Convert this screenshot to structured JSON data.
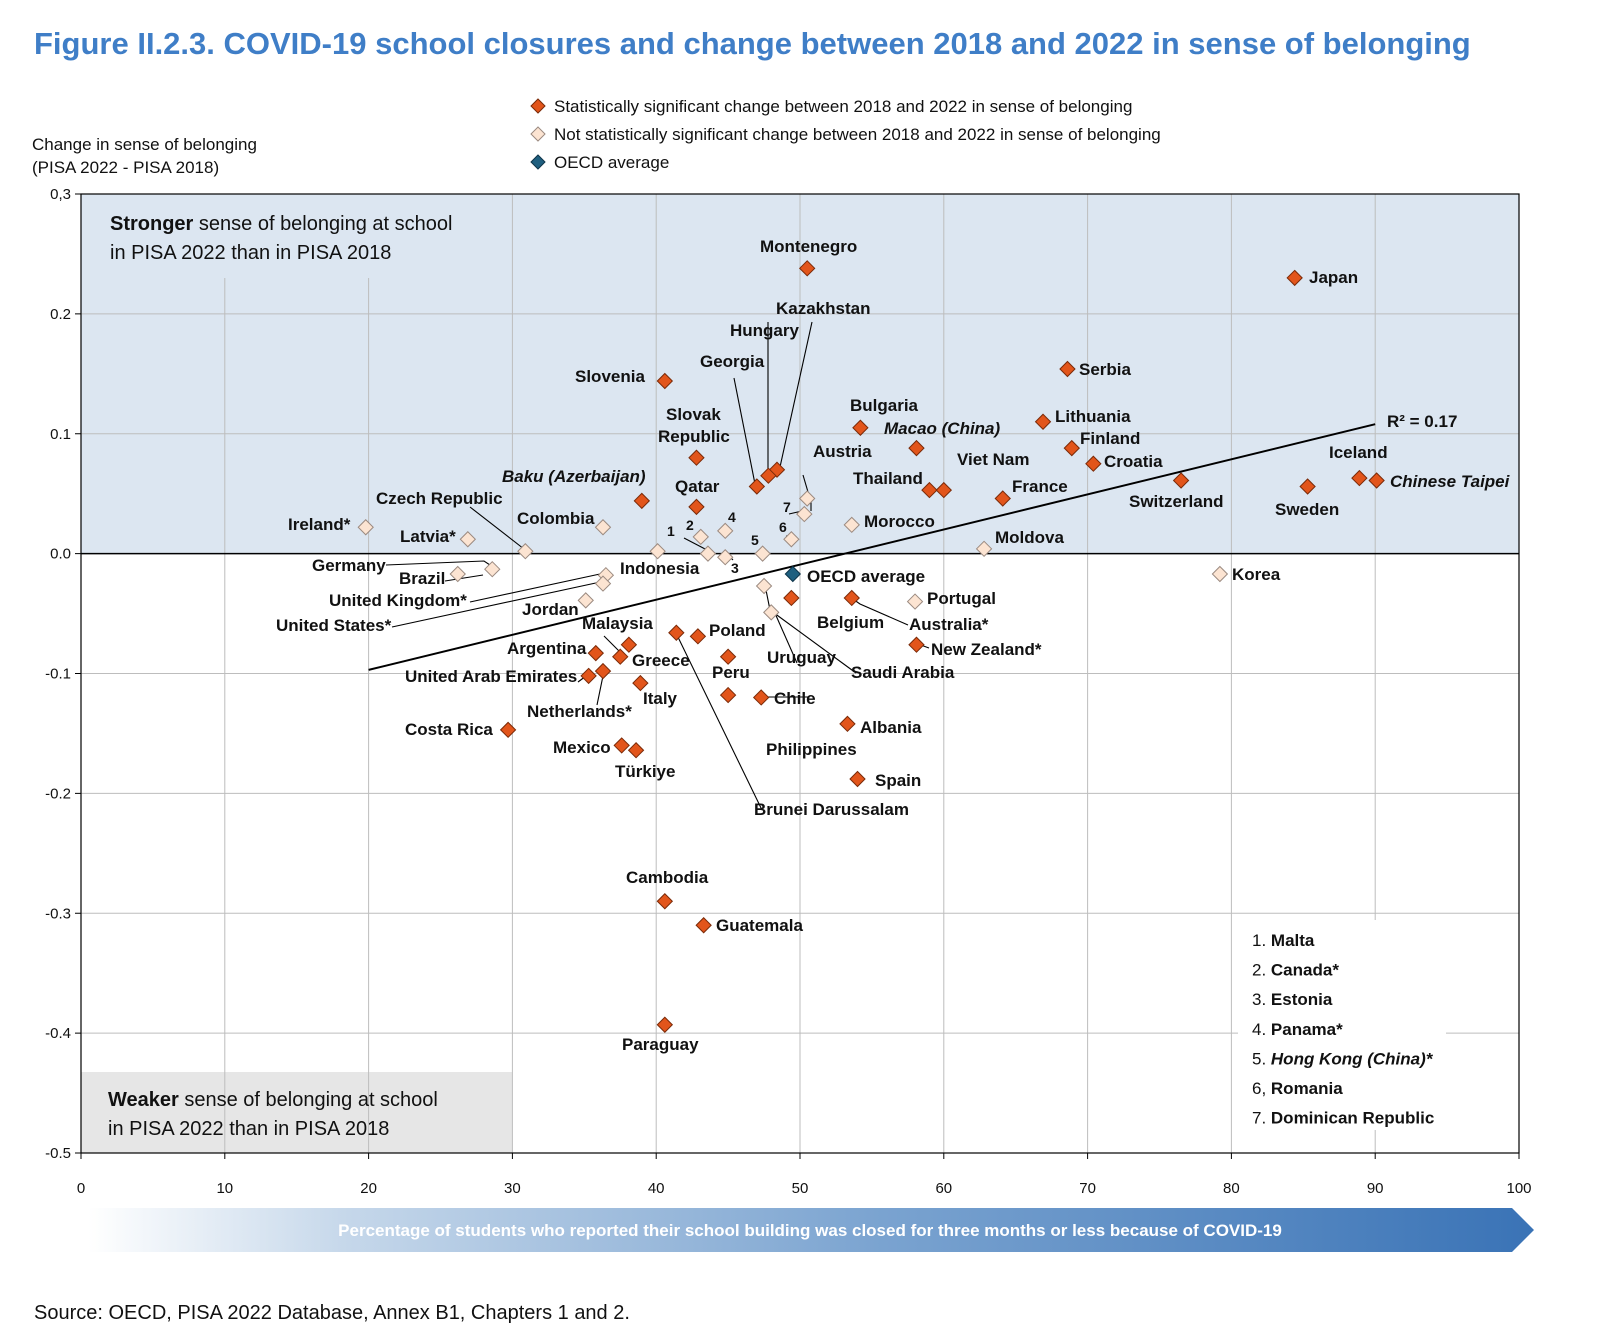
{
  "title": "Figure II.2.3. COVID-19 school closures and change between 2018 and 2022 in sense of belonging",
  "source": "Source: OECD, PISA 2022 Database, Annex B1, Chapters 1 and 2.",
  "colors": {
    "significant": "#e2551b",
    "not_significant": "#fce4d2",
    "oecd": "#1f5f7f",
    "positive_band": "#dce6f1",
    "negative_box": "#e6e6e6",
    "title": "#3f7ec7"
  },
  "legend": {
    "significant": "Statistically significant change between 2018 and 2022 in sense of belonging",
    "not_significant": "Not statistically significant change between 2018 and 2022 in sense of belonging",
    "oecd": "OECD average"
  },
  "region_labels": {
    "top_bold": "Stronger",
    "top_rest": " sense of belonging at school",
    "top_line2": "in PISA 2022 than in PISA 2018",
    "bottom_bold": "Weaker",
    "bottom_rest": " sense of belonging at school",
    "bottom_line2": "in PISA 2022 than in PISA 2018"
  },
  "notes": [
    {
      "num": "1.",
      "text": "Malta",
      "italic": false
    },
    {
      "num": "2.",
      "text": "Canada*",
      "italic": false
    },
    {
      "num": "3.",
      "text": "Estonia",
      "italic": false
    },
    {
      "num": "4.",
      "text": "Panama*",
      "italic": false
    },
    {
      "num": "5.",
      "text": "Hong Kong (China)*",
      "italic": true
    },
    {
      "num": "6,",
      "text": "Romania",
      "italic": false
    },
    {
      "num": "7.",
      "text": "Dominican Republic",
      "italic": false
    }
  ],
  "chart_data": {
    "type": "scatter",
    "ylabel_line1": "Change in sense of belonging",
    "ylabel_line2": "(PISA 2022 - PISA 2018)",
    "xlabel": "Percentage of students who reported their school building was closed for three months or less because of COVID-19",
    "xlim": [
      0,
      100
    ],
    "ylim": [
      -0.5,
      0.3
    ],
    "xticks": [
      "0",
      "10",
      "20",
      "30",
      "40",
      "50",
      "60",
      "70",
      "80",
      "90",
      "100"
    ],
    "yticks": [
      "0,3",
      "0.2",
      "0.1",
      "0.0",
      "-0.1",
      "-0.2",
      "-0.3",
      "-0.4",
      "-0.5"
    ],
    "grid": true,
    "trendline": {
      "x": [
        20,
        90
      ],
      "y": [
        -0.097,
        0.108
      ],
      "label": "R² = 0.17"
    },
    "points": [
      {
        "name": "Montenegro",
        "x": 50.5,
        "y": 0.238,
        "sig": true
      },
      {
        "name": "Japan",
        "x": 84.4,
        "y": 0.23,
        "sig": true
      },
      {
        "name": "Serbia",
        "x": 68.6,
        "y": 0.154,
        "sig": true
      },
      {
        "name": "Slovenia",
        "x": 40.6,
        "y": 0.144,
        "sig": true
      },
      {
        "name": "Lithuania",
        "x": 66.9,
        "y": 0.11,
        "sig": true
      },
      {
        "name": "Bulgaria",
        "x": 54.2,
        "y": 0.105,
        "sig": true
      },
      {
        "name": "Macao (China)",
        "x": 58.1,
        "y": 0.088,
        "sig": true,
        "italic": true
      },
      {
        "name": "Finland",
        "x": 68.9,
        "y": 0.088,
        "sig": true
      },
      {
        "name": "Slovak Republic",
        "x": 42.8,
        "y": 0.08,
        "sig": true
      },
      {
        "name": "Croatia",
        "x": 70.4,
        "y": 0.075,
        "sig": true
      },
      {
        "name": "Kazakhstan",
        "x": 48.4,
        "y": 0.07,
        "sig": true
      },
      {
        "name": "Hungary",
        "x": 47.8,
        "y": 0.065,
        "sig": true
      },
      {
        "name": "Iceland",
        "x": 88.9,
        "y": 0.063,
        "sig": true
      },
      {
        "name": "Chinese Taipei",
        "x": 90.1,
        "y": 0.061,
        "sig": true,
        "italic": true
      },
      {
        "name": "Switzerland",
        "x": 76.5,
        "y": 0.061,
        "sig": true
      },
      {
        "name": "Georgia",
        "x": 47.0,
        "y": 0.056,
        "sig": true
      },
      {
        "name": "Sweden",
        "x": 85.3,
        "y": 0.056,
        "sig": true
      },
      {
        "name": "Thailand",
        "x": 59.0,
        "y": 0.053,
        "sig": true
      },
      {
        "name": "Viet Nam",
        "x": 60.0,
        "y": 0.053,
        "sig": true
      },
      {
        "name": "France",
        "x": 64.1,
        "y": 0.046,
        "sig": true
      },
      {
        "name": "Baku (Azerbaijan)",
        "x": 39.0,
        "y": 0.044,
        "sig": true,
        "italic": true
      },
      {
        "name": "Qatar",
        "x": 42.8,
        "y": 0.039,
        "sig": true
      },
      {
        "name": "Austria",
        "x": 50.5,
        "y": 0.046,
        "sig": false
      },
      {
        "name": "Dominican Republic",
        "x": 50.3,
        "y": 0.033,
        "sig": false
      },
      {
        "name": "Morocco",
        "x": 53.6,
        "y": 0.024,
        "sig": false
      },
      {
        "name": "Ireland*",
        "x": 19.8,
        "y": 0.022,
        "sig": false
      },
      {
        "name": "Colombia",
        "x": 36.3,
        "y": 0.022,
        "sig": false
      },
      {
        "name": "Panama*",
        "x": 44.8,
        "y": 0.019,
        "sig": false
      },
      {
        "name": "Canada*",
        "x": 43.1,
        "y": 0.014,
        "sig": false
      },
      {
        "name": "Latvia*",
        "x": 26.9,
        "y": 0.012,
        "sig": false
      },
      {
        "name": "Romania",
        "x": 49.4,
        "y": 0.012,
        "sig": false
      },
      {
        "name": "Moldova",
        "x": 62.8,
        "y": 0.004,
        "sig": false
      },
      {
        "name": "Czech Republic",
        "x": 30.9,
        "y": 0.002,
        "sig": false
      },
      {
        "name": "Indonesia",
        "x": 40.1,
        "y": 0.002,
        "sig": false
      },
      {
        "name": "Malta",
        "x": 43.6,
        "y": 0.0,
        "sig": false
      },
      {
        "name": "Hong Kong (China)*",
        "x": 47.4,
        "y": 0.0,
        "sig": false
      },
      {
        "name": "Estonia",
        "x": 44.8,
        "y": -0.003,
        "sig": false
      },
      {
        "name": "Germany",
        "x": 28.6,
        "y": -0.013,
        "sig": false
      },
      {
        "name": "Brazil",
        "x": 26.2,
        "y": -0.017,
        "sig": false
      },
      {
        "name": "United Kingdom*",
        "x": 36.5,
        "y": -0.018,
        "sig": false
      },
      {
        "name": "Korea",
        "x": 79.2,
        "y": -0.017,
        "sig": false
      },
      {
        "name": "United States*",
        "x": 36.3,
        "y": -0.025,
        "sig": false
      },
      {
        "name": "Saudi Arabia",
        "x": 47.5,
        "y": -0.027,
        "sig": false
      },
      {
        "name": "Jordan",
        "x": 35.1,
        "y": -0.039,
        "sig": false
      },
      {
        "name": "Portugal",
        "x": 58.0,
        "y": -0.04,
        "sig": false
      },
      {
        "name": "Uruguay",
        "x": 48.0,
        "y": -0.049,
        "sig": false
      },
      {
        "name": "OECD average",
        "x": 49.5,
        "y": -0.017,
        "sig": false,
        "oecd": true
      },
      {
        "name": "Belgium",
        "x": 49.4,
        "y": -0.037,
        "sig": true
      },
      {
        "name": "Australia*",
        "x": 53.6,
        "y": -0.037,
        "sig": true
      },
      {
        "name": "Brunei Darussalam",
        "x": 41.4,
        "y": -0.066,
        "sig": true
      },
      {
        "name": "Poland",
        "x": 42.9,
        "y": -0.069,
        "sig": true
      },
      {
        "name": "Malaysia",
        "x": 38.1,
        "y": -0.076,
        "sig": true
      },
      {
        "name": "New Zealand*",
        "x": 58.1,
        "y": -0.076,
        "sig": true
      },
      {
        "name": "Argentina",
        "x": 35.8,
        "y": -0.083,
        "sig": true
      },
      {
        "name": "Greece",
        "x": 37.5,
        "y": -0.086,
        "sig": true
      },
      {
        "name": "Peru",
        "x": 45.0,
        "y": -0.086,
        "sig": true
      },
      {
        "name": "Netherlands*",
        "x": 36.3,
        "y": -0.098,
        "sig": true
      },
      {
        "name": "United Arab Emirates",
        "x": 35.3,
        "y": -0.102,
        "sig": true
      },
      {
        "name": "Italy",
        "x": 38.9,
        "y": -0.108,
        "sig": true
      },
      {
        "name": "Philippines",
        "x": 45.0,
        "y": -0.118,
        "sig": true
      },
      {
        "name": "Chile",
        "x": 47.3,
        "y": -0.12,
        "sig": true
      },
      {
        "name": "Albania",
        "x": 53.3,
        "y": -0.142,
        "sig": true
      },
      {
        "name": "Costa Rica",
        "x": 29.7,
        "y": -0.147,
        "sig": true
      },
      {
        "name": "Mexico",
        "x": 37.6,
        "y": -0.16,
        "sig": true
      },
      {
        "name": "Türkiye",
        "x": 38.6,
        "y": -0.164,
        "sig": true
      },
      {
        "name": "Spain",
        "x": 54.0,
        "y": -0.188,
        "sig": true
      },
      {
        "name": "Cambodia",
        "x": 40.6,
        "y": -0.29,
        "sig": true
      },
      {
        "name": "Guatemala",
        "x": 43.3,
        "y": -0.31,
        "sig": true
      },
      {
        "name": "Paraguay",
        "x": 40.6,
        "y": -0.393,
        "sig": true
      }
    ]
  }
}
